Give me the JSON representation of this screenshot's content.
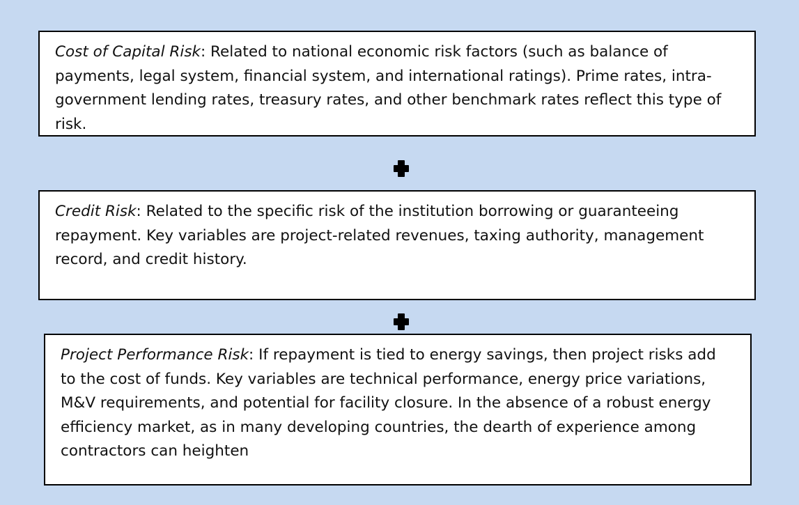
{
  "boxes": [
    {
      "term": "Cost of Capital Risk",
      "text": ": Related to national economic risk factors (such as balance of payments, legal system, financial system, and international ratings). Prime rates, intra-government lending rates, treasury rates, and other benchmark rates reflect this type of risk."
    },
    {
      "term": "Credit Risk",
      "text": ": Related to the specific risk of the institution borrowing or guaranteeing repayment. Key variables are project-related revenues, taxing authority, management record, and credit history."
    },
    {
      "term": "Project Performance Risk",
      "text": ": If repayment is tied to energy savings, then project risks add to the cost of funds. Key variables are technical performance, energy price variations, M&V requirements, and potential for facility closure. In the absence of a robust energy efficiency market, as in many developing countries, the dearth of experience among contractors can heighten"
    }
  ]
}
